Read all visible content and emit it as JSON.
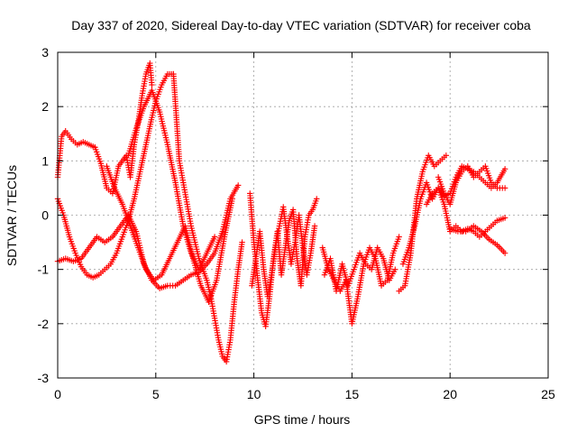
{
  "chart_data": {
    "type": "scatter",
    "title": "Day 337 of 2020, Sidereal Day-to-day VTEC variation (SDTVAR) for receiver coba",
    "xlabel": "GPS time / hours",
    "ylabel": "SDTVAR / TECUs",
    "xlim": [
      0,
      25
    ],
    "ylim": [
      -3,
      3
    ],
    "xticks": [
      0,
      5,
      10,
      15,
      20,
      25
    ],
    "yticks": [
      -3,
      -2,
      -1,
      0,
      1,
      2,
      3
    ],
    "grid": true,
    "marker": "+",
    "color": "#ff0000",
    "series": [
      {
        "x": [
          0.0,
          0.2,
          0.4,
          0.7,
          1.0,
          1.3,
          1.6,
          1.9
        ],
        "y": [
          0.7,
          1.45,
          1.55,
          1.4,
          1.3,
          1.35,
          1.3,
          1.25
        ]
      },
      {
        "x": [
          1.9,
          2.2,
          2.5,
          2.8,
          3.1,
          3.3,
          3.5,
          3.7,
          3.9,
          4.1,
          4.3,
          4.5,
          4.7,
          4.8
        ],
        "y": [
          1.25,
          0.95,
          0.5,
          0.4,
          0.9,
          1.0,
          1.1,
          0.7,
          1.3,
          1.7,
          2.2,
          2.6,
          2.8,
          2.4
        ]
      },
      {
        "x": [
          0.0,
          0.3,
          0.6,
          0.9,
          1.2,
          1.5,
          1.8,
          2.1,
          2.4,
          2.7,
          3.0,
          3.3,
          3.6,
          3.9,
          4.2,
          4.5,
          4.8,
          5.0,
          5.3,
          5.6,
          5.9
        ],
        "y": [
          0.3,
          0.0,
          -0.4,
          -0.7,
          -0.95,
          -1.1,
          -1.15,
          -1.1,
          -1.0,
          -0.9,
          -0.7,
          -0.4,
          -0.1,
          0.3,
          0.8,
          1.3,
          1.8,
          2.1,
          2.4,
          2.6,
          2.6
        ]
      },
      {
        "x": [
          5.9,
          6.05,
          6.2,
          6.4,
          6.6,
          6.8,
          7.0,
          7.2,
          7.4,
          7.6,
          7.8,
          8.0,
          8.2,
          8.4,
          8.6,
          8.8,
          9.0,
          9.2,
          9.4
        ],
        "y": [
          2.6,
          1.8,
          1.0,
          0.6,
          0.2,
          -0.2,
          -0.5,
          -0.8,
          -1.0,
          -1.2,
          -1.5,
          -1.9,
          -2.3,
          -2.6,
          -2.7,
          -2.3,
          -1.6,
          -1.0,
          -0.5
        ]
      },
      {
        "x": [
          0.0,
          0.4,
          0.8,
          1.2,
          1.6,
          2.0,
          2.4,
          2.8,
          3.2,
          3.6,
          4.0,
          4.4,
          4.8,
          5.2,
          5.6,
          6.0,
          6.4,
          6.8,
          7.2,
          7.6,
          8.0,
          8.4,
          8.8,
          9.2
        ],
        "y": [
          -0.85,
          -0.8,
          -0.85,
          -0.8,
          -0.6,
          -0.4,
          -0.5,
          -0.4,
          -0.2,
          0.0,
          -0.3,
          -0.9,
          -1.2,
          -1.35,
          -1.3,
          -1.3,
          -1.2,
          -1.1,
          -1.05,
          -0.9,
          -0.7,
          -0.3,
          0.3,
          0.55
        ]
      },
      {
        "x": [
          2.5,
          2.9,
          3.3,
          3.7,
          4.1,
          4.5,
          4.9,
          5.3,
          5.7,
          6.1,
          6.5,
          6.9,
          7.3,
          7.7,
          8.1,
          8.5,
          8.9
        ],
        "y": [
          0.9,
          0.5,
          0.2,
          -0.2,
          -0.6,
          -1.0,
          -1.2,
          -1.1,
          -0.8,
          -0.5,
          -0.2,
          -0.8,
          -1.3,
          -1.6,
          -1.2,
          -0.4,
          0.3
        ]
      },
      {
        "x": [
          3.6,
          4.0,
          4.4,
          4.8,
          5.2,
          5.6,
          6.0,
          6.4,
          6.8,
          7.2,
          7.6,
          8.0
        ],
        "y": [
          1.1,
          1.6,
          2.0,
          2.3,
          1.9,
          1.3,
          0.6,
          -0.2,
          -0.7,
          -1.0,
          -0.7,
          -0.4
        ]
      },
      {
        "x": [
          9.8,
          10.0,
          10.2,
          10.4,
          10.6,
          10.8,
          11.0,
          11.2,
          11.4,
          11.6,
          11.8,
          12.0,
          12.2,
          12.4,
          12.6,
          12.8,
          13.0,
          13.2
        ],
        "y": [
          0.4,
          -0.5,
          -1.2,
          -1.8,
          -2.05,
          -1.5,
          -0.8,
          -0.3,
          -1.1,
          -0.6,
          -0.1,
          0.1,
          -0.8,
          -1.3,
          -0.4,
          0.0,
          0.1,
          0.3
        ]
      },
      {
        "x": [
          9.9,
          10.1,
          10.3,
          10.5,
          10.7,
          10.9,
          11.1,
          11.3,
          11.5,
          11.7,
          11.9,
          12.1,
          12.3,
          12.5,
          12.7,
          12.9,
          13.1
        ],
        "y": [
          -1.3,
          -0.8,
          -0.3,
          -1.0,
          -1.5,
          -1.1,
          -0.6,
          -0.2,
          0.15,
          -0.4,
          -0.9,
          -0.5,
          0.0,
          -0.6,
          -1.1,
          -0.7,
          -0.2
        ]
      },
      {
        "x": [
          13.5,
          13.8,
          14.1,
          14.4,
          14.7,
          15.0,
          15.3,
          15.6,
          15.9,
          16.2,
          16.5,
          16.8,
          17.1,
          17.4
        ],
        "y": [
          -0.6,
          -1.0,
          -1.2,
          -1.4,
          -1.2,
          -2.0,
          -1.5,
          -0.9,
          -0.6,
          -0.8,
          -1.3,
          -1.2,
          -0.7,
          -0.4
        ]
      },
      {
        "x": [
          13.6,
          13.9,
          14.2,
          14.5,
          14.8,
          15.1,
          15.4,
          15.7,
          16.0,
          16.3,
          16.6,
          16.9,
          17.2
        ],
        "y": [
          -1.1,
          -0.8,
          -1.4,
          -0.9,
          -1.3,
          -1.0,
          -0.7,
          -0.9,
          -1.0,
          -0.6,
          -0.8,
          -1.2,
          -1.0
        ]
      },
      {
        "x": [
          17.4,
          17.7,
          18.0,
          18.3,
          18.6,
          18.9,
          19.2,
          19.5,
          19.8
        ],
        "y": [
          -1.4,
          -1.3,
          -0.7,
          0.3,
          0.8,
          1.1,
          0.9,
          1.0,
          1.1
        ]
      },
      {
        "x": [
          17.6,
          17.9,
          18.2,
          18.5,
          18.8,
          19.1,
          19.4,
          19.7,
          20.0,
          20.3,
          20.6,
          20.9,
          21.2,
          21.5,
          21.8,
          22.1,
          22.4,
          22.8
        ],
        "y": [
          -0.9,
          -0.6,
          -0.2,
          0.3,
          0.6,
          0.3,
          0.5,
          0.2,
          -0.3,
          -0.2,
          -0.3,
          -0.25,
          -0.3,
          -0.4,
          -0.3,
          -0.2,
          -0.1,
          -0.05
        ]
      },
      {
        "x": [
          18.8,
          19.1,
          19.4,
          19.7,
          20.0,
          20.3,
          20.6,
          20.9,
          21.2,
          21.5,
          21.8,
          22.1,
          22.4,
          22.8
        ],
        "y": [
          0.2,
          0.4,
          0.5,
          0.35,
          0.4,
          0.7,
          0.9,
          0.85,
          0.8,
          0.7,
          0.6,
          0.5,
          0.6,
          0.85
        ]
      },
      {
        "x": [
          19.4,
          19.7,
          20.0,
          20.3,
          20.6,
          20.9,
          21.2,
          21.5,
          21.8,
          22.1,
          22.4,
          22.8
        ],
        "y": [
          0.7,
          0.4,
          0.2,
          0.6,
          0.8,
          0.9,
          0.7,
          0.8,
          0.9,
          0.6,
          0.5,
          0.5
        ]
      },
      {
        "x": [
          20.0,
          20.4,
          20.8,
          21.2,
          21.6,
          22.0,
          22.4,
          22.8
        ],
        "y": [
          -0.25,
          -0.3,
          -0.3,
          -0.2,
          -0.3,
          -0.45,
          -0.55,
          -0.7
        ]
      }
    ]
  }
}
